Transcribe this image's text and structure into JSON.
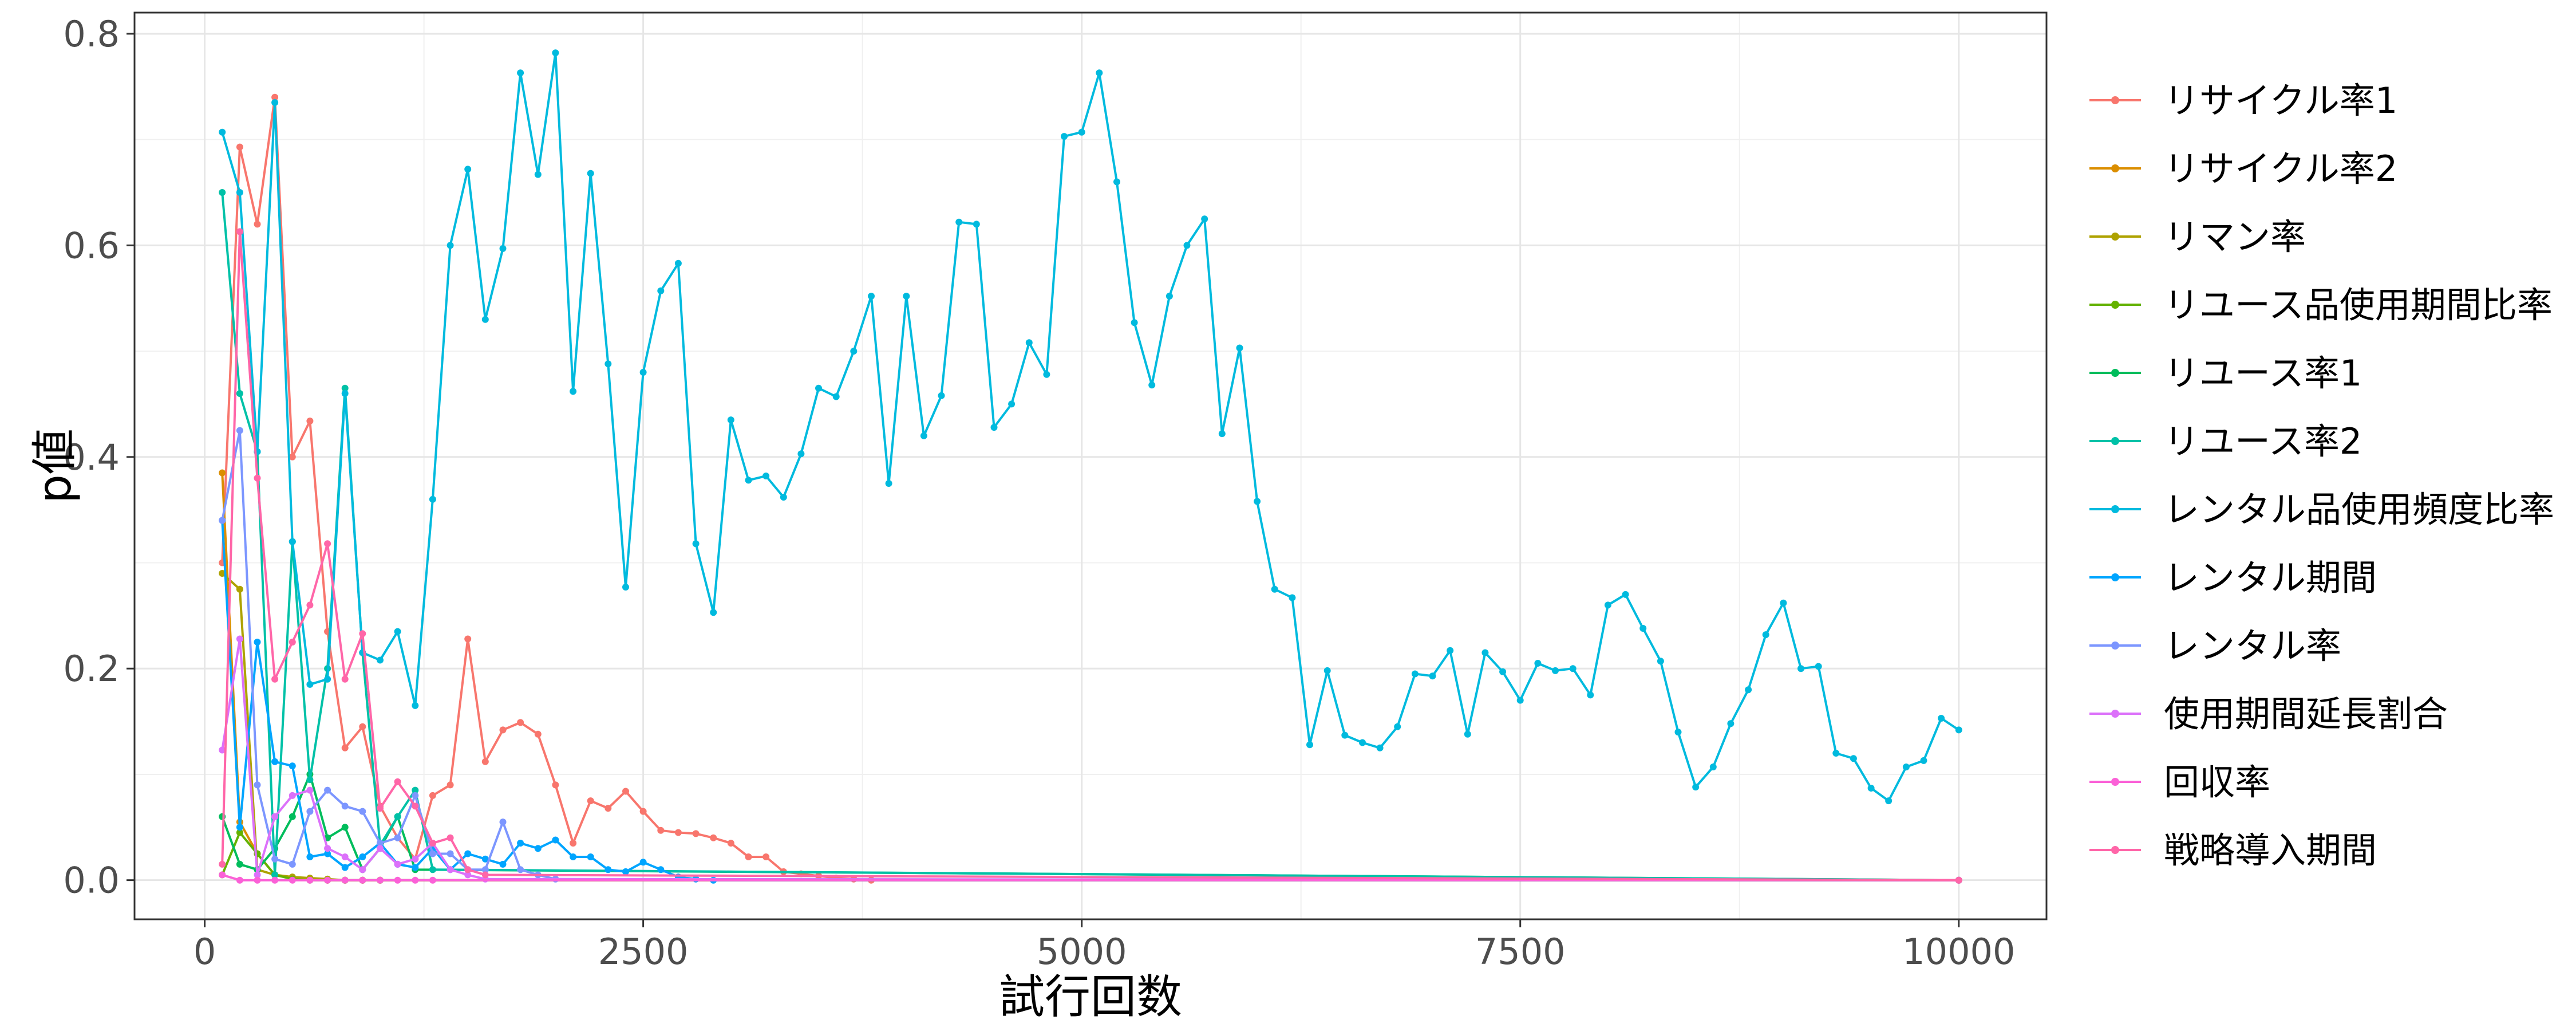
{
  "chart_data": {
    "type": "line",
    "title": "",
    "xlabel": "試行回数",
    "ylabel": "p値",
    "xlim": [
      -400,
      10500
    ],
    "ylim": [
      -0.037,
      0.82
    ],
    "xticks": [
      0,
      2500,
      5000,
      7500,
      10000
    ],
    "xtick_labels": [
      "0",
      "2500",
      "5000",
      "7500",
      "10000"
    ],
    "yticks": [
      0.0,
      0.2,
      0.4,
      0.6,
      0.8
    ],
    "ytick_labels": [
      "0.0",
      "0.2",
      "0.4",
      "0.6",
      "0.8"
    ],
    "grid": true,
    "legend_position": "right",
    "series": [
      {
        "name": "リサイクル率1",
        "color": "#F8766D",
        "x": [
          100,
          200,
          300,
          400,
          500,
          600,
          700,
          800,
          900,
          1000,
          1100,
          1200,
          1300,
          1400,
          1500,
          1600,
          1700,
          1800,
          1900,
          2000,
          2100,
          2200,
          2300,
          2400,
          2500,
          2600,
          2700,
          2800,
          2900,
          3000,
          3100,
          3200,
          3300,
          3400,
          3500,
          3600,
          3700,
          3800,
          10000
        ],
        "y": [
          0.3,
          0.693,
          0.62,
          0.74,
          0.4,
          0.434,
          0.235,
          0.125,
          0.145,
          0.07,
          0.04,
          0.02,
          0.08,
          0.09,
          0.228,
          0.112,
          0.142,
          0.149,
          0.138,
          0.09,
          0.035,
          0.075,
          0.068,
          0.084,
          0.065,
          0.047,
          0.045,
          0.044,
          0.04,
          0.035,
          0.022,
          0.022,
          0.008,
          0.006,
          0.004,
          0.002,
          0.001,
          0.0,
          0.0
        ]
      },
      {
        "name": "リサイクル率2",
        "color": "#DB8E00",
        "x": [
          100,
          200,
          300,
          400,
          500,
          600,
          700,
          800,
          900,
          1000,
          10000
        ],
        "y": [
          0.385,
          0.055,
          0.025,
          0.005,
          0.002,
          0.001,
          0.0,
          0.0,
          0.0,
          0.0,
          0.0
        ]
      },
      {
        "name": "リマン率",
        "color": "#AEA200",
        "x": [
          100,
          200,
          300,
          400,
          500,
          600,
          700,
          800,
          900,
          1000,
          10000
        ],
        "y": [
          0.29,
          0.275,
          0.01,
          0.005,
          0.003,
          0.002,
          0.001,
          0.0,
          0.0,
          0.0,
          0.0
        ]
      },
      {
        "name": "リユース品使用期間比率",
        "color": "#64B200",
        "x": [
          100,
          200,
          300,
          400,
          500,
          600,
          700,
          800,
          900,
          1000,
          10000
        ],
        "y": [
          0.005,
          0.045,
          0.025,
          0.005,
          0.001,
          0.0,
          0.0,
          0.0,
          0.0,
          0.0,
          0.0
        ]
      },
      {
        "name": "リユース率1",
        "color": "#00BD5C",
        "x": [
          100,
          200,
          300,
          400,
          500,
          600,
          700,
          800,
          900,
          1000,
          1100,
          1200,
          10000
        ],
        "y": [
          0.06,
          0.015,
          0.01,
          0.03,
          0.06,
          0.1,
          0.04,
          0.05,
          0.01,
          0.03,
          0.06,
          0.01,
          0.0
        ]
      },
      {
        "name": "リユース率2",
        "color": "#00C1A7",
        "x": [
          100,
          200,
          300,
          400,
          500,
          600,
          700,
          800,
          900,
          1000,
          1100,
          1200,
          1300,
          10000
        ],
        "y": [
          0.65,
          0.46,
          0.405,
          0.005,
          0.32,
          0.095,
          0.2,
          0.465,
          0.215,
          0.033,
          0.06,
          0.085,
          0.01,
          0.0
        ]
      },
      {
        "name": "レンタル品使用頻度比率",
        "color": "#00BADE",
        "x": [
          100,
          200,
          300,
          400,
          500,
          600,
          700,
          800,
          900,
          1000,
          1100,
          1200,
          1300,
          1400,
          1500,
          1600,
          1700,
          1800,
          1900,
          2000,
          2100,
          2200,
          2300,
          2400,
          2500,
          2600,
          2700,
          2800,
          2900,
          3000,
          3100,
          3200,
          3300,
          3400,
          3500,
          3600,
          3700,
          3800,
          3900,
          4000,
          4100,
          4200,
          4300,
          4400,
          4500,
          4600,
          4700,
          4800,
          4900,
          5000,
          5100,
          5200,
          5300,
          5400,
          5500,
          5600,
          5700,
          5800,
          5900,
          6000,
          6100,
          6200,
          6300,
          6400,
          6500,
          6600,
          6700,
          6800,
          6900,
          7000,
          7100,
          7200,
          7300,
          7400,
          7500,
          7600,
          7700,
          7800,
          7900,
          8000,
          8100,
          8200,
          8300,
          8400,
          8500,
          8600,
          8700,
          8800,
          8900,
          9000,
          9100,
          9200,
          9300,
          9400,
          9500,
          9600,
          9700,
          9800,
          9900,
          10000
        ],
        "y": [
          0.707,
          0.65,
          0.405,
          0.735,
          0.32,
          0.185,
          0.19,
          0.46,
          0.215,
          0.208,
          0.235,
          0.165,
          0.36,
          0.6,
          0.672,
          0.53,
          0.597,
          0.763,
          0.667,
          0.782,
          0.462,
          0.668,
          0.488,
          0.277,
          0.48,
          0.557,
          0.583,
          0.318,
          0.253,
          0.435,
          0.378,
          0.382,
          0.362,
          0.403,
          0.465,
          0.457,
          0.5,
          0.552,
          0.375,
          0.552,
          0.42,
          0.458,
          0.622,
          0.62,
          0.428,
          0.45,
          0.508,
          0.478,
          0.703,
          0.707,
          0.763,
          0.66,
          0.527,
          0.468,
          0.552,
          0.6,
          0.625,
          0.422,
          0.503,
          0.358,
          0.275,
          0.267,
          0.128,
          0.198,
          0.137,
          0.13,
          0.125,
          0.145,
          0.195,
          0.193,
          0.217,
          0.138,
          0.215,
          0.197,
          0.17,
          0.205,
          0.198,
          0.2,
          0.175,
          0.26,
          0.27,
          0.238,
          0.207,
          0.14,
          0.088,
          0.107,
          0.148,
          0.18,
          0.232,
          0.262,
          0.2,
          0.202,
          0.12,
          0.115,
          0.087,
          0.075,
          0.107,
          0.113,
          0.153,
          0.142
        ]
      },
      {
        "name": "レンタル期間",
        "color": "#00A5FF",
        "x": [
          100,
          200,
          300,
          400,
          500,
          600,
          700,
          800,
          900,
          1000,
          1100,
          1200,
          1300,
          1400,
          1500,
          1600,
          1700,
          1800,
          1900,
          2000,
          2100,
          2200,
          2300,
          2400,
          2500,
          2600,
          2700,
          2800,
          2900,
          10000
        ],
        "y": [
          0.34,
          0.05,
          0.225,
          0.112,
          0.108,
          0.022,
          0.025,
          0.012,
          0.022,
          0.035,
          0.015,
          0.012,
          0.03,
          0.01,
          0.025,
          0.02,
          0.015,
          0.035,
          0.03,
          0.038,
          0.022,
          0.022,
          0.01,
          0.008,
          0.017,
          0.01,
          0.003,
          0.001,
          0.0,
          0.0
        ]
      },
      {
        "name": "レンタル率",
        "color": "#7C96FF",
        "x": [
          100,
          200,
          300,
          400,
          500,
          600,
          700,
          800,
          900,
          1000,
          1100,
          1200,
          1300,
          1400,
          1500,
          1600,
          1700,
          1800,
          1900,
          2000,
          10000
        ],
        "y": [
          0.34,
          0.425,
          0.09,
          0.02,
          0.015,
          0.065,
          0.085,
          0.07,
          0.065,
          0.035,
          0.04,
          0.08,
          0.025,
          0.025,
          0.01,
          0.01,
          0.055,
          0.01,
          0.005,
          0.001,
          0.0
        ]
      },
      {
        "name": "使用期間延長割合",
        "color": "#DC71FA",
        "x": [
          100,
          200,
          300,
          400,
          500,
          600,
          700,
          800,
          900,
          1000,
          1100,
          1200,
          1300,
          1400,
          1500,
          1600,
          10000
        ],
        "y": [
          0.123,
          0.228,
          0.005,
          0.06,
          0.08,
          0.085,
          0.03,
          0.022,
          0.01,
          0.03,
          0.015,
          0.02,
          0.035,
          0.01,
          0.005,
          0.001,
          0.0
        ]
      },
      {
        "name": "回収率",
        "color": "#FB61D7",
        "x": [
          100,
          200,
          300,
          400,
          500,
          600,
          700,
          800,
          900,
          1000,
          1100,
          1200,
          1300,
          10000
        ],
        "y": [
          0.005,
          0.0,
          0.0,
          0.0,
          0.0,
          0.0,
          0.0,
          0.0,
          0.0,
          0.0,
          0.0,
          0.0,
          0.0,
          0.0
        ]
      },
      {
        "name": "戦略導入期間",
        "color": "#FF66A8",
        "x": [
          100,
          200,
          300,
          400,
          500,
          600,
          700,
          800,
          900,
          1000,
          1100,
          1200,
          1300,
          1400,
          1500,
          1600,
          10000
        ],
        "y": [
          0.015,
          0.613,
          0.38,
          0.19,
          0.225,
          0.26,
          0.318,
          0.19,
          0.233,
          0.068,
          0.093,
          0.07,
          0.035,
          0.04,
          0.01,
          0.005,
          0.0
        ]
      }
    ]
  }
}
